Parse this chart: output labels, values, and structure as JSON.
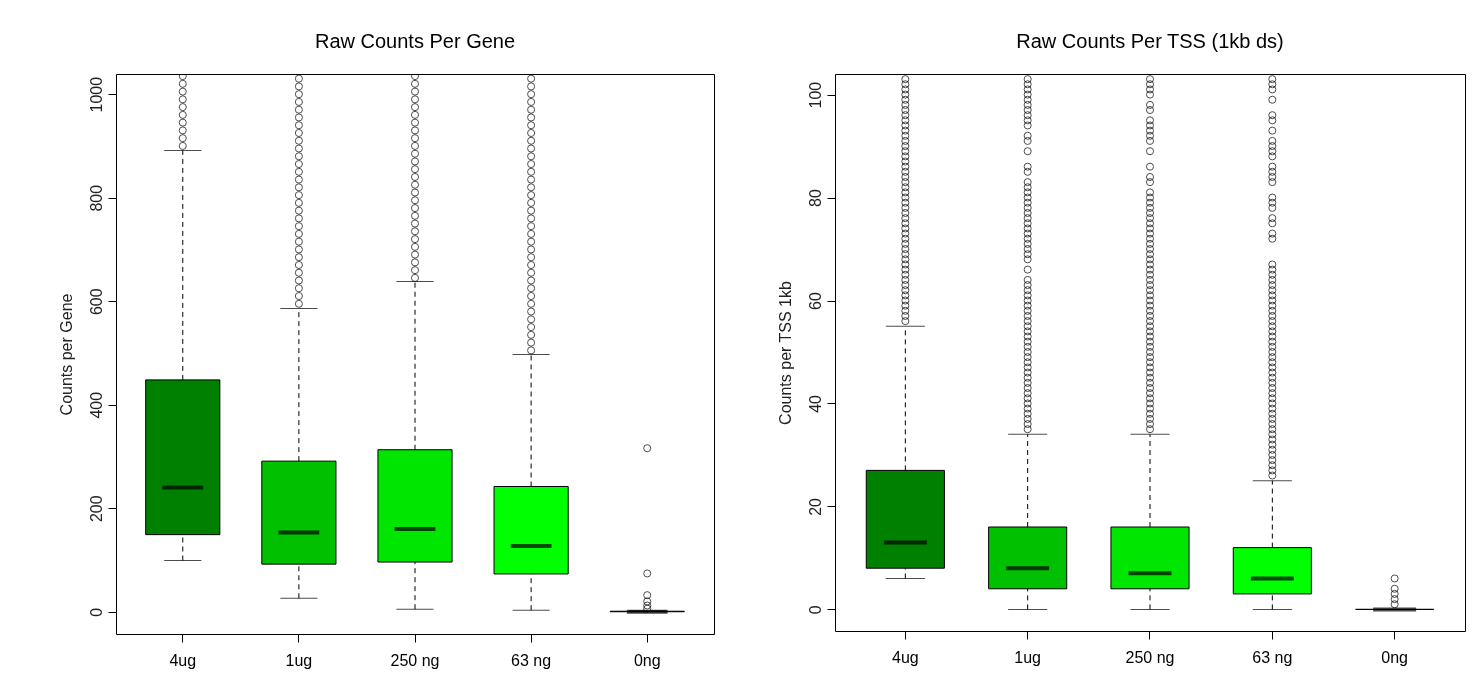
{
  "chart_data": [
    {
      "type": "box",
      "title": "Raw Counts Per Gene",
      "ylabel": "Counts per Gene",
      "categories": [
        "4ug",
        "1ug",
        "250 ng",
        "63 ng",
        "0ng"
      ],
      "colors": [
        "#008000",
        "#00c000",
        "#00e600",
        "#00ff00",
        "#00ff00"
      ],
      "ylim": [
        -43,
        1039
      ],
      "yticks": [
        0,
        200,
        400,
        600,
        800,
        1000
      ],
      "marker": "circle",
      "boxes": [
        {
          "low": 99,
          "q1": 149,
          "median": 240,
          "q3": 448,
          "high": 891,
          "outliers": [
            900,
            915,
            930,
            945,
            960,
            975,
            990,
            1005,
            1020,
            1035
          ]
        },
        {
          "low": 26,
          "q1": 92,
          "median": 153,
          "q3": 291,
          "high": 586,
          "outliers": [
            595,
            610,
            625,
            640,
            655,
            670,
            685,
            700,
            715,
            730,
            745,
            760,
            775,
            790,
            805,
            820,
            835,
            850,
            865,
            880,
            895,
            910,
            925,
            940,
            955,
            970,
            985,
            1000,
            1015,
            1030
          ]
        },
        {
          "low": 5,
          "q1": 96,
          "median": 160,
          "q3": 313,
          "high": 638,
          "outliers": [
            645,
            660,
            675,
            690,
            705,
            720,
            735,
            750,
            765,
            780,
            795,
            810,
            825,
            840,
            855,
            870,
            885,
            900,
            915,
            930,
            945,
            960,
            975,
            990,
            1005,
            1020,
            1035
          ]
        },
        {
          "low": 3,
          "q1": 73,
          "median": 127,
          "q3": 242,
          "high": 497,
          "outliers": [
            505,
            520,
            535,
            550,
            565,
            580,
            595,
            610,
            625,
            640,
            655,
            670,
            685,
            700,
            715,
            730,
            745,
            760,
            775,
            790,
            805,
            820,
            835,
            850,
            865,
            880,
            895,
            910,
            925,
            940,
            955,
            970,
            985,
            1000,
            1015,
            1030
          ]
        },
        {
          "low": 0,
          "q1": 0,
          "median": 0,
          "q3": 1,
          "high": 2,
          "outliers": [
            6,
            12,
            20,
            32,
            74,
            316
          ]
        }
      ]
    },
    {
      "type": "box",
      "title": "Raw Counts Per TSS (1kb ds)",
      "ylabel": "Counts per TSS 1kb",
      "categories": [
        "4ug",
        "1ug",
        "250 ng",
        "63 ng",
        "0ng"
      ],
      "colors": [
        "#008000",
        "#00c000",
        "#00e600",
        "#00ff00",
        "#000000"
      ],
      "ylim": [
        -4.2,
        104
      ],
      "yticks": [
        0,
        20,
        40,
        60,
        80,
        100
      ],
      "marker": "circle",
      "boxes": [
        {
          "low": 6,
          "q1": 8,
          "median": 13,
          "q3": 27,
          "high": 55,
          "outliers": [
            56,
            57,
            58,
            59,
            60,
            61,
            62,
            63,
            64,
            65,
            66,
            67,
            68,
            69,
            70,
            71,
            72,
            73,
            74,
            75,
            76,
            77,
            78,
            79,
            80,
            81,
            82,
            83,
            84,
            85,
            86,
            87,
            88,
            89,
            90,
            91,
            92,
            93,
            94,
            95,
            96,
            97,
            98,
            99,
            100,
            101,
            102,
            103
          ]
        },
        {
          "low": 0,
          "q1": 4,
          "median": 8,
          "q3": 16,
          "high": 34,
          "outliers": [
            35,
            36,
            37,
            38,
            39,
            40,
            41,
            42,
            43,
            44,
            45,
            46,
            47,
            48,
            49,
            50,
            51,
            52,
            53,
            54,
            55,
            56,
            57,
            58,
            59,
            60,
            61,
            62,
            63,
            64,
            66,
            68,
            69,
            70,
            71,
            72,
            73,
            74,
            75,
            76,
            77,
            78,
            79,
            80,
            81,
            82,
            83,
            85,
            86,
            89,
            91,
            92,
            94,
            95,
            96,
            97,
            98,
            99,
            100,
            101,
            102,
            103
          ]
        },
        {
          "low": 0,
          "q1": 4,
          "median": 7,
          "q3": 16,
          "high": 34,
          "outliers": [
            35,
            36,
            37,
            38,
            39,
            40,
            41,
            42,
            43,
            44,
            45,
            46,
            47,
            48,
            49,
            50,
            51,
            52,
            53,
            54,
            55,
            56,
            57,
            58,
            59,
            60,
            61,
            62,
            63,
            64,
            65,
            66,
            67,
            68,
            69,
            70,
            71,
            72,
            73,
            74,
            75,
            76,
            77,
            78,
            79,
            80,
            81,
            83,
            84,
            86,
            89,
            91,
            92,
            93,
            94,
            95,
            97,
            98,
            100,
            101,
            102,
            103
          ]
        },
        {
          "low": 0,
          "q1": 3,
          "median": 6,
          "q3": 12,
          "high": 25,
          "outliers": [
            26,
            27,
            28,
            29,
            30,
            31,
            32,
            33,
            34,
            35,
            36,
            37,
            38,
            39,
            40,
            41,
            42,
            43,
            44,
            45,
            46,
            47,
            48,
            49,
            50,
            51,
            52,
            53,
            54,
            55,
            56,
            57,
            58,
            59,
            60,
            61,
            62,
            63,
            64,
            65,
            66,
            67,
            72,
            73,
            75,
            76,
            78,
            79,
            80,
            83,
            84,
            85,
            86,
            88,
            89,
            90,
            91,
            93,
            95,
            96,
            99,
            101,
            102,
            103
          ]
        },
        {
          "low": 0,
          "q1": 0,
          "median": 0,
          "q3": 0,
          "high": 0,
          "outliers": [
            1,
            2,
            3,
            4,
            6
          ]
        }
      ]
    }
  ]
}
